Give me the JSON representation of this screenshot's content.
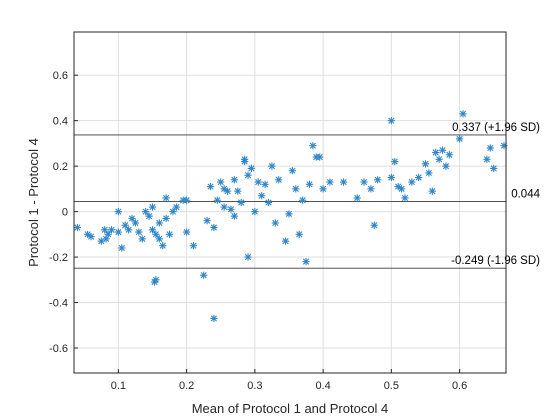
{
  "chart_data": {
    "type": "scatter",
    "title": "",
    "xlabel": "Mean of Protocol 1 and Protocol 4",
    "ylabel": "Protocol 1 - Protocol 4",
    "xlim": [
      0.035,
      0.668
    ],
    "ylim": [
      -0.71,
      0.79
    ],
    "xticks": [
      0.1,
      0.2,
      0.3,
      0.4,
      0.5,
      0.6
    ],
    "xtick_labels": [
      "0.1",
      "0.2",
      "0.3",
      "0.4",
      "0.5",
      "0.6"
    ],
    "yticks": [
      -0.6,
      -0.4,
      -0.2,
      0,
      0.2,
      0.4,
      0.6
    ],
    "ytick_labels": [
      "-0.6",
      "-0.4",
      "-0.2",
      "0",
      "0.2",
      "0.4",
      "0.6"
    ],
    "grid": true,
    "marker": "asterisk",
    "marker_color": "#2f86c9",
    "reference_lines": [
      {
        "y": 0.337,
        "label": "0.337 (+1.96 SD)"
      },
      {
        "y": 0.044,
        "label": "0.044"
      },
      {
        "y": -0.249,
        "label": "-0.249 (-1.96 SD)"
      }
    ],
    "points": [
      [
        0.04,
        -0.07
      ],
      [
        0.055,
        -0.1
      ],
      [
        0.06,
        -0.11
      ],
      [
        0.075,
        -0.13
      ],
      [
        0.08,
        -0.08
      ],
      [
        0.082,
        -0.12
      ],
      [
        0.085,
        -0.1
      ],
      [
        0.09,
        -0.08
      ],
      [
        0.1,
        0.0
      ],
      [
        0.1,
        -0.09
      ],
      [
        0.105,
        -0.16
      ],
      [
        0.11,
        -0.06
      ],
      [
        0.115,
        -0.08
      ],
      [
        0.12,
        -0.03
      ],
      [
        0.125,
        -0.05
      ],
      [
        0.13,
        -0.09
      ],
      [
        0.135,
        -0.12
      ],
      [
        0.14,
        0.0
      ],
      [
        0.145,
        -0.02
      ],
      [
        0.15,
        0.02
      ],
      [
        0.15,
        -0.08
      ],
      [
        0.155,
        -0.1
      ],
      [
        0.16,
        -0.12
      ],
      [
        0.16,
        -0.05
      ],
      [
        0.165,
        -0.15
      ],
      [
        0.17,
        0.06
      ],
      [
        0.17,
        -0.03
      ],
      [
        0.175,
        -0.1
      ],
      [
        0.18,
        0.0
      ],
      [
        0.185,
        0.02
      ],
      [
        0.195,
        0.05
      ],
      [
        0.2,
        0.05
      ],
      [
        0.155,
        -0.3
      ],
      [
        0.153,
        -0.31
      ],
      [
        0.21,
        -0.15
      ],
      [
        0.225,
        -0.28
      ],
      [
        0.23,
        -0.04
      ],
      [
        0.235,
        0.11
      ],
      [
        0.24,
        -0.07
      ],
      [
        0.245,
        0.05
      ],
      [
        0.25,
        0.13
      ],
      [
        0.255,
        0.1
      ],
      [
        0.255,
        0.02
      ],
      [
        0.26,
        0.09
      ],
      [
        0.265,
        0.01
      ],
      [
        0.27,
        0.14
      ],
      [
        0.27,
        -0.02
      ],
      [
        0.275,
        0.09
      ],
      [
        0.28,
        0.04
      ],
      [
        0.285,
        0.23
      ],
      [
        0.29,
        0.16
      ],
      [
        0.295,
        0.19
      ],
      [
        0.3,
        0.0
      ],
      [
        0.305,
        0.13
      ],
      [
        0.31,
        0.07
      ],
      [
        0.315,
        0.12
      ],
      [
        0.32,
        0.04
      ],
      [
        0.325,
        0.2
      ],
      [
        0.33,
        -0.05
      ],
      [
        0.335,
        0.14
      ],
      [
        0.345,
        -0.13
      ],
      [
        0.35,
        -0.01
      ],
      [
        0.355,
        0.18
      ],
      [
        0.36,
        0.1
      ],
      [
        0.365,
        -0.1
      ],
      [
        0.37,
        0.05
      ],
      [
        0.375,
        -0.22
      ],
      [
        0.38,
        0.12
      ],
      [
        0.385,
        0.29
      ],
      [
        0.39,
        0.24
      ],
      [
        0.395,
        0.24
      ],
      [
        0.4,
        0.1
      ],
      [
        0.41,
        0.13
      ],
      [
        0.43,
        0.13
      ],
      [
        0.45,
        0.06
      ],
      [
        0.46,
        0.13
      ],
      [
        0.47,
        0.1
      ],
      [
        0.475,
        -0.06
      ],
      [
        0.48,
        0.14
      ],
      [
        0.5,
        0.4
      ],
      [
        0.5,
        0.15
      ],
      [
        0.505,
        0.22
      ],
      [
        0.51,
        0.11
      ],
      [
        0.515,
        0.1
      ],
      [
        0.52,
        0.06
      ],
      [
        0.53,
        0.13
      ],
      [
        0.54,
        0.15
      ],
      [
        0.55,
        0.21
      ],
      [
        0.555,
        0.17
      ],
      [
        0.56,
        0.09
      ],
      [
        0.565,
        0.26
      ],
      [
        0.57,
        0.23
      ],
      [
        0.575,
        0.27
      ],
      [
        0.58,
        0.2
      ],
      [
        0.585,
        0.25
      ],
      [
        0.6,
        0.32
      ],
      [
        0.605,
        0.43
      ],
      [
        0.64,
        0.23
      ],
      [
        0.645,
        0.28
      ],
      [
        0.65,
        0.19
      ],
      [
        0.665,
        0.29
      ],
      [
        0.29,
        -0.2
      ],
      [
        0.24,
        -0.47
      ],
      [
        0.285,
        0.22
      ],
      [
        0.2,
        -0.09
      ]
    ]
  }
}
